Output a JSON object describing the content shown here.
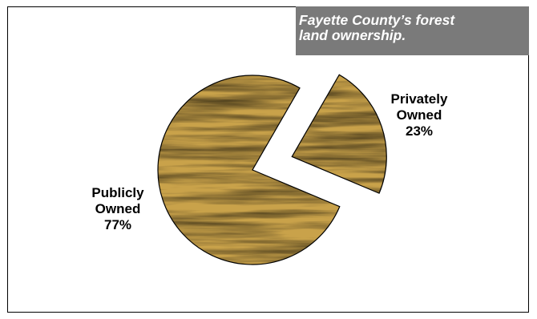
{
  "chart_data": {
    "type": "pie",
    "title_lines": [
      "Fayette County’s forest",
      "land ownership."
    ],
    "slices": [
      {
        "label_lines": [
          "Publicly",
          "Owned"
        ],
        "value": 77,
        "value_label": "77%"
      },
      {
        "label_lines": [
          "Privately",
          "Owned"
        ],
        "value": 23,
        "value_label": "23%"
      }
    ],
    "exploded": "Privately Owned",
    "fill": "wood-grain texture",
    "colors": {
      "wood_base": "#c9a24a",
      "wood_dark": "#8a6420",
      "wood_light": "#e7cd86",
      "title_background": "#7a7a7a",
      "title_text": "#ffffff"
    }
  }
}
